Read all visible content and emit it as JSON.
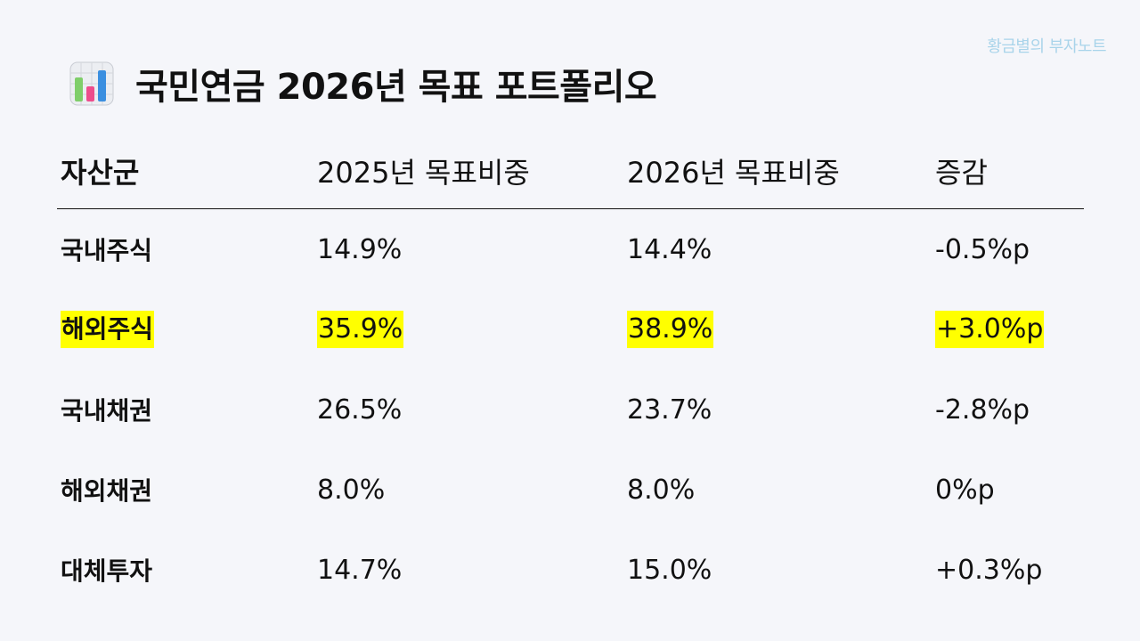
{
  "watermark": "황금별의 부자노트",
  "title": "국민연금 2026년 목표 포트폴리오",
  "title_icon": "bar-chart-icon",
  "highlight_color": "#ffff00",
  "table": {
    "headers": [
      "자산군",
      "2025년 목표비중",
      "2026년 목표비중",
      "증감"
    ],
    "rows": [
      {
        "asset": "국내주식",
        "y2025": "14.9%",
        "y2026": "14.4%",
        "change": "-0.5%p",
        "highlighted": false
      },
      {
        "asset": "해외주식",
        "y2025": "35.9%",
        "y2026": "38.9%",
        "change": "+3.0%p",
        "highlighted": true
      },
      {
        "asset": "국내채권",
        "y2025": "26.5%",
        "y2026": "23.7%",
        "change": "-2.8%p",
        "highlighted": false
      },
      {
        "asset": "해외채권",
        "y2025": "8.0%",
        "y2026": "8.0%",
        "change": "0%p",
        "highlighted": false
      },
      {
        "asset": "대체투자",
        "y2025": "14.7%",
        "y2026": "15.0%",
        "change": "+0.3%p",
        "highlighted": false
      }
    ]
  }
}
